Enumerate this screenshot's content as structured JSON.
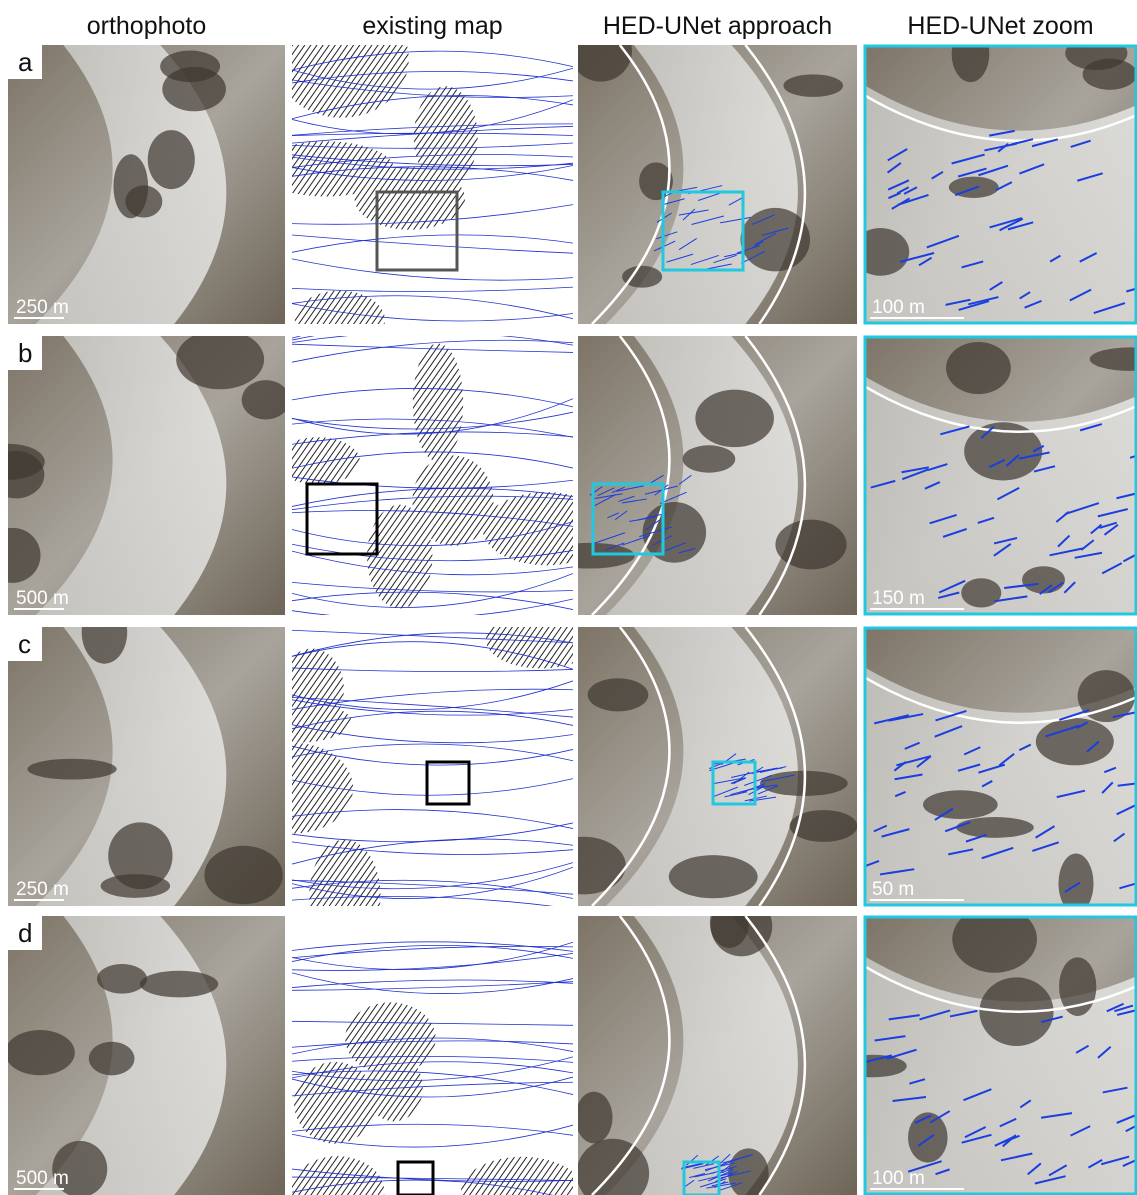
{
  "columns": [
    "orthophoto",
    "existing map",
    "HED-UNet approach",
    "HED-UNet zoom"
  ],
  "rows": [
    {
      "label": "a",
      "orthophoto_scale": "250 m",
      "zoom_scale": "100 m"
    },
    {
      "label": "b",
      "orthophoto_scale": "500 m",
      "zoom_scale": "150 m"
    },
    {
      "label": "c",
      "orthophoto_scale": "250 m",
      "zoom_scale": "50 m"
    },
    {
      "label": "d",
      "orthophoto_scale": "500 m",
      "zoom_scale": "100 m"
    }
  ]
}
